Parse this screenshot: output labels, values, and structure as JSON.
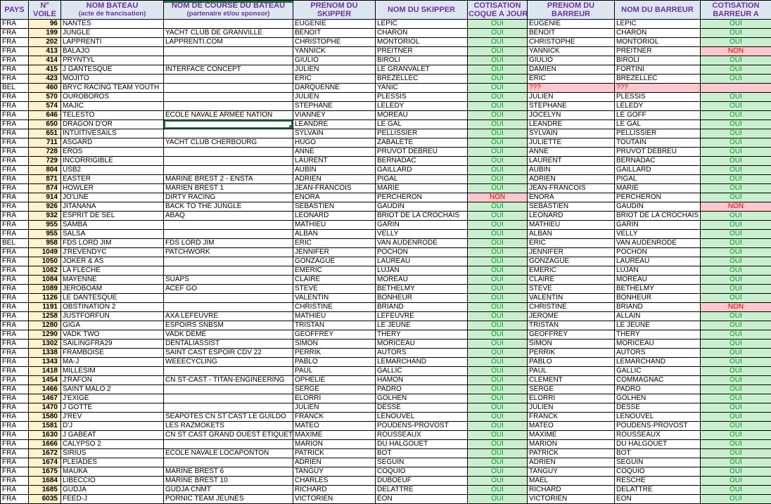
{
  "colors": {
    "header-bg": "#dce6f1",
    "header-text": "#7030a0",
    "voile-bg": "#fff2cc",
    "oui-bg": "#c9efce",
    "oui-text": "#00a033",
    "non-bg": "#ffc7ce",
    "non-text": "#d40000",
    "sel": "#217346"
  },
  "table": {
    "columns": [
      {
        "line1": "PAYS",
        "line2": ""
      },
      {
        "line1": "N°",
        "line2": "VOILE"
      },
      {
        "line1": "NOM BATEAU",
        "line2": "(acte de francisation)"
      },
      {
        "line1": "NOM DE COURSE DU BATEAU",
        "line2": "(partenaire et/ou sponsor)"
      },
      {
        "line1": "PRENOM DU",
        "line2": "SKIPPER"
      },
      {
        "line1": "NOM DU SKIPPER",
        "line2": ""
      },
      {
        "line1": "COTISATION",
        "line2": "COQUE A JOUR"
      },
      {
        "line1": "PRENOM DU",
        "line2": "BARREUR"
      },
      {
        "line1": "NOM DU BARREUR",
        "line2": ""
      },
      {
        "line1": "COTISATION",
        "line2": "BARREUR A"
      }
    ],
    "selection": {
      "row_index": 11,
      "col_index": 3
    },
    "rows": [
      [
        "FRA",
        "96",
        "NANTES",
        "",
        "EUGENIE",
        "LEPIC",
        "OUI",
        "EUGENIE",
        "LEPIC",
        "OUI"
      ],
      [
        "FRA",
        "199",
        "JUNGLE",
        "YACHT CLUB DE GRANVILLE",
        "BENOIT",
        "CHARON",
        "OUI",
        "BENOIT",
        "CHARON",
        "OUI"
      ],
      [
        "FRA",
        "202",
        "LAPPRENTI",
        "LAPPRENTI.COM",
        "CHRISTOPHE",
        "MONTORIOL",
        "OUI",
        "CHRISTOPHE",
        "MONTORIOL",
        "OUI"
      ],
      [
        "FRA",
        "413",
        "BALAJO",
        "",
        "YANNICK",
        "PREITNER",
        "OUI",
        "YANNICK",
        "PREITNER",
        "NON"
      ],
      [
        "FRA",
        "414",
        "PRYNTYL",
        "",
        "GIULIO",
        "BIROLI",
        "OUI",
        "GIULIO",
        "BIROLI",
        "OUI"
      ],
      [
        "FRA",
        "415",
        "J GANTESQUE",
        "INTERFACE CONCEPT",
        "JULIEN",
        "LE GRANVALET",
        "OUI",
        "DAMIEN",
        "FORTINI",
        "OUI"
      ],
      [
        "FRA",
        "423",
        "MOJITO",
        "",
        "ERIC",
        "BREZELLEC",
        "OUI",
        "ERIC",
        "BREZELLEC",
        "OUI"
      ],
      [
        "BEL",
        "460",
        "BRYC RACING TEAM YOUTH",
        "",
        "DARQUENNE",
        "YANIC",
        "OUI",
        "???",
        "???",
        ""
      ],
      [
        "FRA",
        "570",
        "OUROBOROS",
        "",
        "JULIEN",
        "PLESSIS",
        "OUI",
        "JULIEN",
        "PLESSIS",
        "OUI"
      ],
      [
        "FRA",
        "574",
        "MAJIC",
        "",
        "STEPHANE",
        "LELEDY",
        "OUI",
        "STEPHANE",
        "LELEDY",
        "OUI"
      ],
      [
        "FRA",
        "646",
        "TELESTO",
        "ÉCOLE NAVALE ARMÉE NATION",
        "VIANNEY",
        "MOREAU",
        "OUI",
        "JOCELYN",
        "LE GOFF",
        "OUI"
      ],
      [
        "FRA",
        "650",
        "DRAGON D'OR",
        "",
        "LEANDRE",
        "LE GAL",
        "OUI",
        "LEANDRE",
        "LE GAL",
        "OUI"
      ],
      [
        "FRA",
        "651",
        "INTUITIVESAILS",
        "",
        "SYLVAIN",
        "PELLISSIER",
        "OUI",
        "SYLVAIN",
        "PELLISSIER",
        "OUI"
      ],
      [
        "FRA",
        "711",
        "ASGARD",
        "YACHT CLUB CHERBOURG",
        "HUGO",
        "ZABALETE",
        "OUI",
        "JULIETTE",
        "TOUTAIN",
        "OUI"
      ],
      [
        "FRA",
        "728",
        "EROS",
        "",
        "ANNE",
        "PRUVOT DEBREU",
        "OUI",
        "ANNE",
        "PRUVOT DEBREU",
        "OUI"
      ],
      [
        "FRA",
        "729",
        "INCORRIGIBLE",
        "",
        "LAURENT",
        "BERNADAC",
        "OUI",
        "LAURENT",
        "BERNADAC",
        "OUI"
      ],
      [
        "FRA",
        "804",
        "USB2",
        "",
        "AUBIN",
        "GAILLARD",
        "OUI",
        "AUBIN",
        "GAILLARD",
        "OUI"
      ],
      [
        "FRA",
        "871",
        "EASTER",
        "MARINE BREST 2 - ENSTA",
        "ADRIEN",
        "PIGAL",
        "OUI",
        "ADRIEN",
        "PIGAL",
        "OUI"
      ],
      [
        "FRA",
        "874",
        "HOWLER",
        "MARIEN BREST 1",
        "JEAN-FRANCOIS",
        "MARIE",
        "OUI",
        "JEAN-FRANCOIS",
        "MARIE",
        "OUI"
      ],
      [
        "FRA",
        "914",
        "JO'LINE",
        "DIRTY RACING",
        "ENORA",
        "PERCHERON",
        "NON",
        "ENORA",
        "PERCHERON",
        "OUI"
      ],
      [
        "FRA",
        "926",
        "JITANANA",
        "BACK TO THE JUNGLE",
        "SEBASTIEN",
        "GAUDIN",
        "OUI",
        "SEBASTIEN",
        "GAUDIN",
        "NON"
      ],
      [
        "FRA",
        "932",
        "ESPRIT DE SEL",
        "ABAQ",
        "LEONARD",
        "BRIOT DE LA CROCHAIS",
        "OUI",
        "LEONARD",
        "BRIOT DE LA CROCHAIS",
        "OUI"
      ],
      [
        "FRA",
        "955",
        "SAMBA",
        "",
        "MATHIEU",
        "GARIN",
        "OUI",
        "MATHIEU",
        "GARIN",
        "OUI"
      ],
      [
        "FRA",
        "955",
        "SALSA",
        "",
        "ALBAN",
        "VELLY",
        "OUI",
        "ALBAN",
        "VELLY",
        "OUI"
      ],
      [
        "BEL",
        "958",
        "FDS LORD JIM",
        "FDS LORD JIM",
        "ERIC",
        "VAN AUDENRODE",
        "OUI",
        "ERIC",
        "VAN AUDENRODE",
        "OUI"
      ],
      [
        "FRA",
        "1049",
        "J'REVENDYC",
        "PATCHWORK",
        "JENNIFER",
        "POCHON",
        "OUI",
        "JENNIFER",
        "POCHON",
        "OUI"
      ],
      [
        "FRA",
        "1050",
        "JOKER & AS",
        "",
        "GONZAGUE",
        "LAUREAU",
        "OUI",
        "GONZAGUE",
        "LAUREAU",
        "OUI"
      ],
      [
        "FRA",
        "1082",
        "LA FLÈCHE",
        "",
        "EMERIC",
        "LUJAN",
        "OUI",
        "EMERIC",
        "LUJAN",
        "OUI"
      ],
      [
        "FRA",
        "1084",
        "MAYENNE",
        "SUAPS",
        "CLAIRE",
        "MOREAU",
        "OUI",
        "CLAIRE",
        "MOREAU",
        "OUI"
      ],
      [
        "FRA",
        "1089",
        "JEROBOAM",
        "ACEF GO",
        "STEVE",
        "BETHELMY",
        "OUI",
        "STEVE",
        "BETHELMY",
        "OUI"
      ],
      [
        "FRA",
        "1126",
        "LE DANTESQUE",
        "",
        "VALENTIN",
        "BONHEUR",
        "OUI",
        "VALENTIN",
        "BONHEUR",
        "OUI"
      ],
      [
        "FRA",
        "1191",
        "OBSTINATION 2",
        "",
        "CHRISTINE",
        "BRIAND",
        "OUI",
        "CHRISTINE",
        "BRIAND",
        "NON"
      ],
      [
        "FRA",
        "1258",
        "JUSTFORFUN",
        "AXA LEFEUVRE",
        "MATHIEU",
        "LEFEUVRE",
        "OUI",
        "JEROME",
        "ALLAIN",
        "OUI"
      ],
      [
        "FRA",
        "1280",
        "GIGA",
        "ESPOIRS SNBSM",
        "TRISTAN",
        "LE JEUNE",
        "OUI",
        "TRISTAN",
        "LE JEUNE",
        "OUI"
      ],
      [
        "FRA",
        "1290",
        "VADK TWO",
        "VADK DEME",
        "GEOFFREY",
        "THERY",
        "OUI",
        "GEOFFREY",
        "THERY",
        "OUI"
      ],
      [
        "FRA",
        "1302",
        "SAILINGFRA29",
        "DENTALIASSIST",
        "SIMON",
        "MORICEAU",
        "OUI",
        "SIMON",
        "MORICEAU",
        "OUI"
      ],
      [
        "FRA",
        "1338",
        "FRAMBOISE",
        "SAINT CAST ESPOIR CDV 22",
        "PERRIK",
        "AUTORS",
        "OUI",
        "PERRIK",
        "AUTORS",
        "OUI"
      ],
      [
        "FRA",
        "1343",
        "MA-J",
        "WEEECYCLING",
        "PABLO",
        "LEMARCHAND",
        "OUI",
        "PABLO",
        "LEMARCHAND",
        "OUI"
      ],
      [
        "FRA",
        "1418",
        "MILLESIM",
        "",
        "PAUL",
        "GALLIC",
        "OUI",
        "PAUL",
        "GALLIC",
        "OUI"
      ],
      [
        "FRA",
        "1454",
        "J'RAFON",
        "CN ST-CAST - TITAN-ENGINEERING",
        "OPHELIE",
        "HAMON",
        "OUI",
        "CLEMENT",
        "COMMAGNAC",
        "OUI"
      ],
      [
        "FRA",
        "1466",
        "SAINT MALO 2",
        "",
        "SERGE",
        "PADRO",
        "OUI",
        "SERGE",
        "PADRO",
        "OUI"
      ],
      [
        "FRA",
        "1467",
        "J'EXIGE",
        "",
        "ELORRI",
        "GOLHEN",
        "OUI",
        "ELORRI",
        "GOLHEN",
        "OUI"
      ],
      [
        "FRA",
        "1470",
        "J GOTTE",
        "",
        "JULIEN",
        "DESSE",
        "OUI",
        "JULIEN",
        "DESSE",
        "OUI"
      ],
      [
        "FRA",
        "1580",
        "J'REV",
        "SEAPOTES CN ST CAST LE GUILDO",
        "FRANCK",
        "LENOUVEL",
        "OUI",
        "FRANCK",
        "LENOUVEL",
        "OUI"
      ],
      [
        "FRA",
        "1581",
        "D'J",
        "LES RAZMOKETS",
        "MATEO",
        "POUDENS-PROVOST",
        "OUI",
        "MATEO",
        "POUDENS-PROVOST",
        "OUI"
      ],
      [
        "FRA",
        "1630",
        "J GABEAT",
        "CN ST CAST GRAND OUEST ETIQUET",
        "MAXIME",
        "ROUSSEAUX",
        "OUI",
        "MAXIME",
        "ROUSSEAUX",
        "OUI"
      ],
      [
        "FRA",
        "1666",
        "CALYPSO 2",
        "",
        "MARION",
        "DU HALGOUET",
        "OUI",
        "MARION",
        "DU HALGOUET",
        "OUI"
      ],
      [
        "FRA",
        "1672",
        "SIRIUS",
        "ECOLE NAVALE LOCAPONTON",
        "PATRICK",
        "BOT",
        "OUI",
        "PATRICK",
        "BOT",
        "OUI"
      ],
      [
        "FRA",
        "1674",
        "PLEIADES",
        "",
        "ADRIEN",
        "SEGUIN",
        "OUI",
        "ADRIEN",
        "SEGUIN",
        "OUI"
      ],
      [
        "FRA",
        "1675",
        "MAUKA",
        "MARINE BREST 6",
        "TANGUY",
        "COQUIO",
        "OUI",
        "TANGUY",
        "COQUIO",
        "OUI"
      ],
      [
        "FRA",
        "1684",
        "LIBECCIO",
        "MARINE BREST 10",
        "CHARLES",
        "DUBOEUF",
        "OUI",
        "MAEL",
        "RESCHE",
        "OUI"
      ],
      [
        "FRA",
        "1685",
        "GUDJA",
        "GUDJA CNMT",
        "RICHARD",
        "DELATTRE",
        "OUI",
        "RICHARD",
        "DELATTRE",
        "OUI"
      ],
      [
        "FRA",
        "6035",
        "FEED-J",
        "PORNIC TEAM JEUNES",
        "VICTORIEN",
        "EON",
        "OUI",
        "VICTORIEN",
        "EON",
        "OUI"
      ]
    ]
  }
}
